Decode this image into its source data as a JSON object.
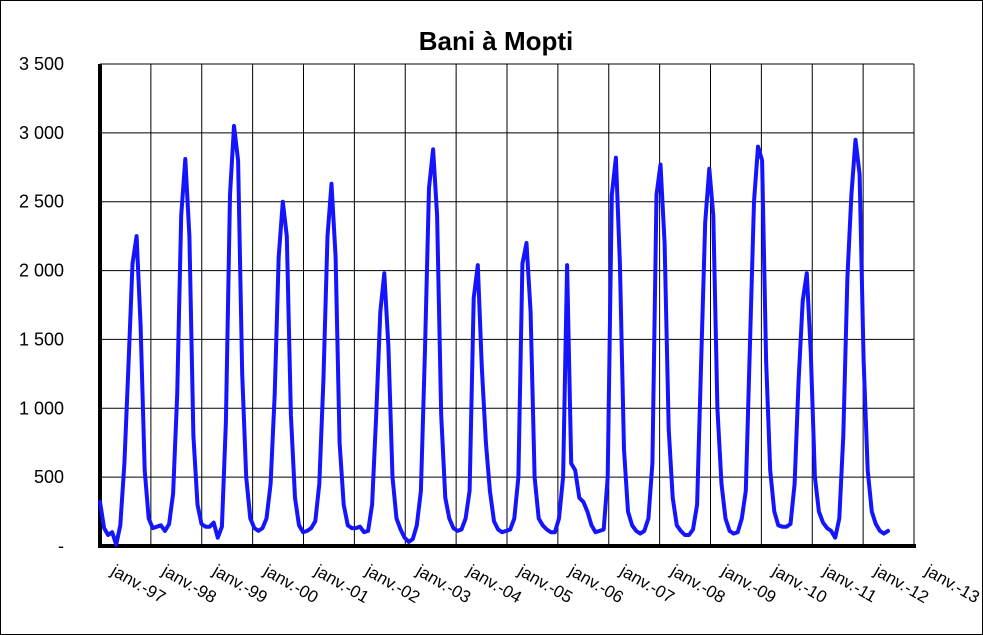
{
  "chart_data": {
    "type": "line",
    "title": "Bani à Mopti",
    "xlabel": "",
    "ylabel": "",
    "ylim": [
      0,
      3500
    ],
    "y_ticks": [
      {
        "value": 3500,
        "label": "3 500"
      },
      {
        "value": 3000,
        "label": "3 000"
      },
      {
        "value": 2500,
        "label": "2 500"
      },
      {
        "value": 2000,
        "label": "2 000"
      },
      {
        "value": 1500,
        "label": "1 500"
      },
      {
        "value": 1000,
        "label": "1 000"
      },
      {
        "value": 500,
        "label": "500"
      },
      {
        "value": 0,
        "label": "-"
      }
    ],
    "x_tick_labels": [
      "janv.-97",
      "janv.-98",
      "janv.-99",
      "janv.-00",
      "janv.-01",
      "janv.-02",
      "janv.-03",
      "janv.-04",
      "janv.-05",
      "janv.-06",
      "janv.-07",
      "janv.-08",
      "janv.-09",
      "janv.-10",
      "janv.-11",
      "janv.-12",
      "janv.-13"
    ],
    "grid": true,
    "line_color": "#1414ff",
    "series": [
      {
        "values": [
          320,
          130,
          80,
          100,
          10,
          150,
          600,
          1300,
          2050,
          2250,
          1600,
          550,
          200,
          130,
          140,
          150,
          110,
          160,
          380,
          1100,
          2400,
          2810,
          2250,
          800,
          300,
          160,
          140,
          140,
          170,
          60,
          140,
          900,
          2550,
          3050,
          2800,
          1250,
          500,
          200,
          130,
          110,
          130,
          200,
          450,
          1100,
          2100,
          2500,
          2250,
          950,
          350,
          150,
          100,
          110,
          130,
          180,
          450,
          1200,
          2250,
          2630,
          2100,
          750,
          300,
          150,
          130,
          130,
          140,
          100,
          110,
          300,
          950,
          1700,
          1980,
          1450,
          500,
          200,
          120,
          60,
          30,
          50,
          150,
          400,
          1400,
          2600,
          2880,
          2400,
          950,
          350,
          200,
          130,
          110,
          120,
          200,
          400,
          1800,
          2040,
          1300,
          750,
          400,
          180,
          120,
          100,
          110,
          120,
          200,
          500,
          2050,
          2200,
          1700,
          500,
          200,
          150,
          120,
          100,
          100,
          200,
          500,
          2040,
          600,
          550,
          350,
          320,
          250,
          150,
          100,
          110,
          120,
          500,
          2550,
          2820,
          2050,
          700,
          250,
          150,
          110,
          90,
          110,
          200,
          600,
          2550,
          2770,
          2200,
          850,
          350,
          150,
          110,
          80,
          80,
          120,
          300,
          1350,
          2350,
          2740,
          2400,
          1000,
          450,
          200,
          110,
          90,
          100,
          200,
          400,
          1450,
          2500,
          2900,
          2800,
          1350,
          550,
          250,
          150,
          140,
          140,
          160,
          450,
          1200,
          1780,
          1980,
          1400,
          500,
          250,
          170,
          130,
          110,
          60,
          200,
          800,
          1950,
          2550,
          2950,
          2700,
          1350,
          550,
          250,
          160,
          110,
          90,
          110
        ]
      }
    ]
  }
}
